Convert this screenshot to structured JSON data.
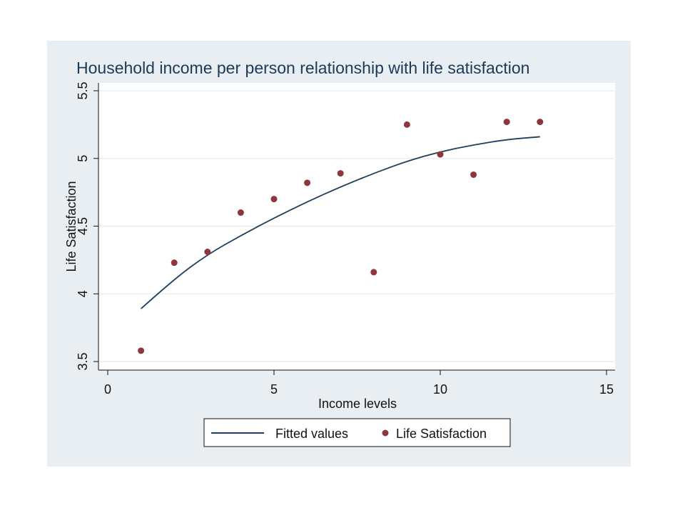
{
  "chart_data": {
    "type": "scatter",
    "title": "Household income per person relationship with life satisfaction",
    "xlabel": "Income levels",
    "ylabel": "Life Satisfaction",
    "xlim": [
      0,
      15
    ],
    "ylim": [
      3.5,
      5.5
    ],
    "xticks": [
      0,
      5,
      10,
      15
    ],
    "yticks": [
      3.5,
      4,
      4.5,
      5,
      5.5
    ],
    "xtick_labels": [
      "0",
      "5",
      "10",
      "15"
    ],
    "ytick_labels": [
      "3.5",
      "4",
      "4.5",
      "5",
      "5.5"
    ],
    "grid": "horizontal",
    "legend_placement": "bottom",
    "series": [
      {
        "name": "Fitted values",
        "kind": "line",
        "color": "#1f3f5f",
        "x": [
          1,
          2,
          3,
          4,
          5,
          6,
          7,
          8,
          9,
          10,
          11,
          12,
          13
        ],
        "y": [
          3.89,
          4.11,
          4.29,
          4.43,
          4.56,
          4.68,
          4.79,
          4.89,
          4.98,
          5.05,
          5.1,
          5.14,
          5.16
        ]
      },
      {
        "name": "Life Satisfaction",
        "kind": "scatter",
        "color": "#90353b",
        "x": [
          1,
          2,
          3,
          4,
          5,
          6,
          7,
          8,
          9,
          10,
          11,
          12,
          13
        ],
        "y": [
          3.58,
          4.23,
          4.31,
          4.6,
          4.7,
          4.82,
          4.89,
          4.16,
          5.25,
          5.03,
          4.88,
          5.27,
          5.27
        ]
      }
    ],
    "colors": {
      "outer_background": "#e8eef2",
      "plot_background": "#ffffff",
      "grid": "#e8eef2"
    }
  }
}
